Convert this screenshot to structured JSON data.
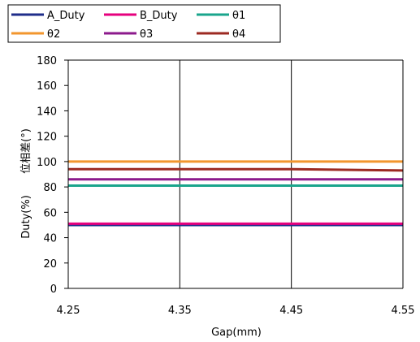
{
  "chart_data": {
    "type": "line",
    "x": [
      4.25,
      4.35,
      4.45,
      4.55
    ],
    "x_tick_labels": [
      "4.25",
      "4.35",
      "4.45",
      "4.55"
    ],
    "xlim": [
      4.25,
      4.55
    ],
    "y_ticks": [
      0,
      20,
      40,
      60,
      80,
      100,
      120,
      140,
      160,
      180
    ],
    "y_tick_labels": [
      "0",
      "20",
      "40",
      "60",
      "80",
      "100",
      "120",
      "140",
      "160",
      "180"
    ],
    "ylim": [
      0,
      180
    ],
    "xlabel": "Gap(mm)",
    "ylabel_primary": "位相差(°)",
    "ylabel_secondary": "Duty(%)",
    "grid": true,
    "legend_position": "top",
    "series": [
      {
        "name": "A_Duty",
        "color": "#1f2d8a",
        "values": [
          50,
          50,
          50,
          50
        ]
      },
      {
        "name": "B_Duty",
        "color": "#e6007e",
        "values": [
          51,
          51,
          51,
          51
        ]
      },
      {
        "name": "θ1",
        "color": "#1aa58c",
        "values": [
          81,
          81,
          81,
          81
        ]
      },
      {
        "name": "θ2",
        "color": "#f2962e",
        "values": [
          100,
          100,
          100,
          100
        ]
      },
      {
        "name": "θ3",
        "color": "#8c1a8c",
        "values": [
          86,
          86,
          86,
          86
        ]
      },
      {
        "name": "θ4",
        "color": "#9c2a22",
        "values": [
          94,
          94,
          94,
          93
        ]
      }
    ]
  }
}
